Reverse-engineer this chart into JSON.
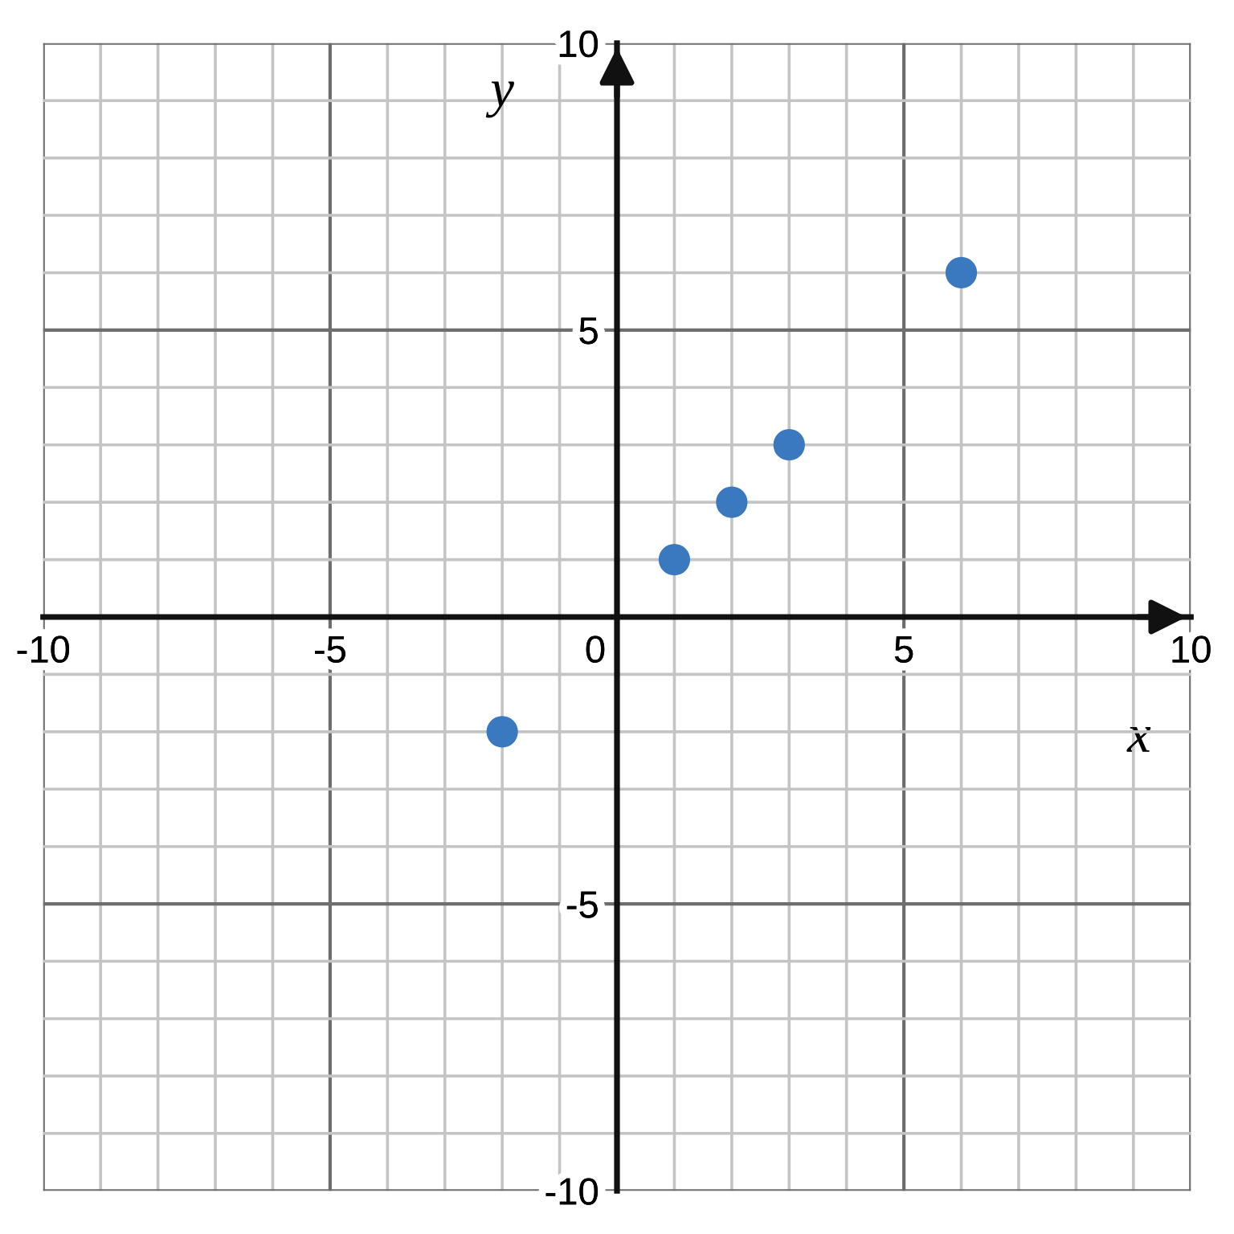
{
  "chart_data": {
    "type": "scatter",
    "xlabel": "x",
    "ylabel": "y",
    "x": [
      -2,
      1,
      2,
      3,
      6
    ],
    "series": [
      {
        "color": "#3a78c0",
        "values": [
          -2,
          1,
          2,
          3,
          6
        ]
      }
    ],
    "xlim": [
      -10,
      10
    ],
    "ylim": [
      -10,
      10
    ],
    "xticks": [
      -10,
      -5,
      0,
      5,
      10
    ],
    "yticks": [
      -10,
      -5,
      5,
      10
    ],
    "grid": true,
    "marker": "circle"
  }
}
